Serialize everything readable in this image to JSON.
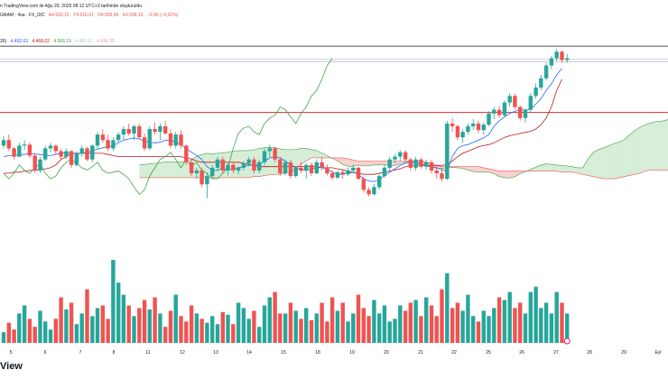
{
  "header": {
    "published": "n TradingView.com ile Ağu 29, 2025 08:12 UTC+3 tarihinde oluşturuldu",
    "symbol": "GRAM · 4sa · FX_IDC",
    "open": "A4.509,15",
    "high": "Y4.516,01",
    "low": "D4.505,99",
    "close": "K4.508,19",
    "change": "−0,96 (−0,02%)"
  },
  "indicator": {
    "label": "26)",
    "values": [
      "4.492,63",
      "4.468,02",
      "4.508,19",
      "4.480,12",
      "4.436,30"
    ]
  },
  "watermark": "View",
  "colors": {
    "up": "#26a69a",
    "down": "#ef5350",
    "conversion": "#2962ff",
    "base": "#b71c1c",
    "lagging": "#43a047",
    "cloud_bull": "#a5d6a7",
    "cloud_bear": "#ef9a9a",
    "hline": "#d32f2f",
    "hline_top": "#131722",
    "gray_line": "#b2b5be"
  },
  "chart_data": {
    "type": "candlestick",
    "x_ticks": [
      "5",
      "6",
      "7",
      "8",
      "11",
      "12",
      "13",
      "14",
      "15",
      "18",
      "19",
      "20",
      "21",
      "22",
      "25",
      "26",
      "27",
      "28",
      "29",
      "Eyl"
    ],
    "price_range": [
      4140,
      4540
    ],
    "horizontal_lines": [
      4530,
      4506,
      4502,
      4410
    ],
    "ohlc": [
      [
        4350,
        4368,
        4345,
        4360
      ],
      [
        4360,
        4370,
        4340,
        4345
      ],
      [
        4345,
        4348,
        4325,
        4330
      ],
      [
        4330,
        4355,
        4330,
        4350
      ],
      [
        4350,
        4360,
        4342,
        4352
      ],
      [
        4352,
        4356,
        4328,
        4332
      ],
      [
        4332,
        4336,
        4300,
        4305
      ],
      [
        4305,
        4330,
        4300,
        4325
      ],
      [
        4325,
        4350,
        4322,
        4345
      ],
      [
        4345,
        4355,
        4338,
        4350
      ],
      [
        4350,
        4352,
        4335,
        4340
      ],
      [
        4340,
        4344,
        4325,
        4330
      ],
      [
        4330,
        4345,
        4326,
        4340
      ],
      [
        4340,
        4342,
        4310,
        4315
      ],
      [
        4315,
        4340,
        4312,
        4335
      ],
      [
        4335,
        4350,
        4330,
        4345
      ],
      [
        4345,
        4348,
        4322,
        4325
      ],
      [
        4325,
        4352,
        4320,
        4350
      ],
      [
        4350,
        4375,
        4345,
        4370
      ],
      [
        4370,
        4380,
        4355,
        4360
      ],
      [
        4360,
        4370,
        4340,
        4345
      ],
      [
        4345,
        4365,
        4340,
        4360
      ],
      [
        4360,
        4375,
        4355,
        4370
      ],
      [
        4370,
        4385,
        4360,
        4380
      ],
      [
        4380,
        4390,
        4368,
        4372
      ],
      [
        4372,
        4388,
        4360,
        4385
      ],
      [
        4385,
        4390,
        4362,
        4365
      ],
      [
        4365,
        4372,
        4340,
        4345
      ],
      [
        4345,
        4385,
        4342,
        4380
      ],
      [
        4380,
        4392,
        4370,
        4375
      ],
      [
        4375,
        4390,
        4360,
        4385
      ],
      [
        4385,
        4395,
        4370,
        4372
      ],
      [
        4372,
        4380,
        4345,
        4350
      ],
      [
        4350,
        4375,
        4345,
        4370
      ],
      [
        4370,
        4378,
        4345,
        4350
      ],
      [
        4350,
        4352,
        4315,
        4320
      ],
      [
        4320,
        4325,
        4295,
        4300
      ],
      [
        4300,
        4310,
        4290,
        4305
      ],
      [
        4305,
        4310,
        4275,
        4280
      ],
      [
        4280,
        4300,
        4255,
        4295
      ],
      [
        4295,
        4315,
        4290,
        4310
      ],
      [
        4310,
        4330,
        4305,
        4325
      ],
      [
        4325,
        4330,
        4300,
        4305
      ],
      [
        4305,
        4318,
        4296,
        4315
      ],
      [
        4315,
        4320,
        4300,
        4305
      ],
      [
        4305,
        4312,
        4298,
        4310
      ],
      [
        4310,
        4322,
        4305,
        4318
      ],
      [
        4318,
        4330,
        4312,
        4325
      ],
      [
        4325,
        4330,
        4300,
        4305
      ],
      [
        4305,
        4325,
        4300,
        4320
      ],
      [
        4320,
        4345,
        4315,
        4340
      ],
      [
        4340,
        4352,
        4330,
        4345
      ],
      [
        4345,
        4348,
        4320,
        4325
      ],
      [
        4325,
        4330,
        4295,
        4300
      ],
      [
        4300,
        4325,
        4296,
        4320
      ],
      [
        4320,
        4324,
        4290,
        4295
      ],
      [
        4295,
        4312,
        4292,
        4310
      ],
      [
        4310,
        4320,
        4300,
        4305
      ],
      [
        4305,
        4318,
        4290,
        4315
      ],
      [
        4315,
        4320,
        4295,
        4300
      ],
      [
        4300,
        4325,
        4298,
        4320
      ],
      [
        4320,
        4330,
        4305,
        4310
      ],
      [
        4310,
        4316,
        4296,
        4300
      ],
      [
        4300,
        4305,
        4288,
        4292
      ],
      [
        4292,
        4304,
        4290,
        4302
      ],
      [
        4302,
        4308,
        4290,
        4298
      ],
      [
        4298,
        4310,
        4295,
        4305
      ],
      [
        4305,
        4316,
        4300,
        4310
      ],
      [
        4310,
        4312,
        4288,
        4290
      ],
      [
        4290,
        4294,
        4265,
        4270
      ],
      [
        4270,
        4275,
        4258,
        4262
      ],
      [
        4262,
        4280,
        4260,
        4275
      ],
      [
        4275,
        4300,
        4270,
        4295
      ],
      [
        4295,
        4315,
        4292,
        4310
      ],
      [
        4310,
        4330,
        4305,
        4325
      ],
      [
        4325,
        4335,
        4318,
        4330
      ],
      [
        4330,
        4342,
        4322,
        4338
      ],
      [
        4338,
        4342,
        4320,
        4325
      ],
      [
        4325,
        4328,
        4305,
        4310
      ],
      [
        4310,
        4330,
        4305,
        4325
      ],
      [
        4325,
        4328,
        4308,
        4312
      ],
      [
        4312,
        4325,
        4306,
        4320
      ],
      [
        4320,
        4324,
        4300,
        4305
      ],
      [
        4305,
        4316,
        4290,
        4300
      ],
      [
        4300,
        4310,
        4285,
        4290
      ],
      [
        4290,
        4395,
        4288,
        4390
      ],
      [
        4390,
        4400,
        4375,
        4385
      ],
      [
        4385,
        4388,
        4360,
        4365
      ],
      [
        4365,
        4380,
        4355,
        4375
      ],
      [
        4375,
        4390,
        4370,
        4385
      ],
      [
        4385,
        4398,
        4378,
        4390
      ],
      [
        4390,
        4395,
        4372,
        4378
      ],
      [
        4378,
        4392,
        4370,
        4388
      ],
      [
        4388,
        4412,
        4385,
        4408
      ],
      [
        4408,
        4420,
        4398,
        4415
      ],
      [
        4415,
        4422,
        4400,
        4405
      ],
      [
        4405,
        4432,
        4402,
        4428
      ],
      [
        4428,
        4445,
        4420,
        4440
      ],
      [
        4440,
        4444,
        4415,
        4420
      ],
      [
        4420,
        4422,
        4395,
        4400
      ],
      [
        4400,
        4418,
        4392,
        4415
      ],
      [
        4415,
        4445,
        4410,
        4440
      ],
      [
        4440,
        4462,
        4435,
        4455
      ],
      [
        4455,
        4478,
        4450,
        4472
      ],
      [
        4472,
        4500,
        4468,
        4495
      ],
      [
        4495,
        4512,
        4488,
        4508
      ],
      [
        4508,
        4525,
        4503,
        4520
      ],
      [
        4520,
        4522,
        4500,
        4505
      ],
      [
        4505,
        4516,
        4500,
        4508
      ]
    ],
    "volume": [
      8,
      15,
      10,
      22,
      28,
      18,
      12,
      24,
      16,
      10,
      18,
      34,
      25,
      30,
      14,
      22,
      40,
      20,
      26,
      28,
      18,
      62,
      45,
      36,
      28,
      20,
      26,
      32,
      25,
      34,
      22,
      12,
      24,
      36,
      20,
      16,
      28,
      22,
      18,
      15,
      20,
      14,
      23,
      21,
      14,
      30,
      26,
      18,
      24,
      12,
      28,
      34,
      38,
      22,
      22,
      30,
      24,
      18,
      26,
      17,
      22,
      30,
      16,
      34,
      24,
      30,
      16,
      22,
      36,
      26,
      20,
      32,
      22,
      28,
      16,
      18,
      28,
      24,
      30,
      32,
      20,
      34,
      28,
      20,
      40,
      52,
      26,
      30,
      24,
      36,
      20,
      16,
      24,
      20,
      26,
      34,
      32,
      38,
      26,
      30,
      22,
      38,
      42,
      26,
      30,
      22,
      38,
      30,
      22,
      26
    ],
    "tenkan": [
      4330,
      4332,
      4332,
      4334,
      4334,
      4336,
      4335,
      4334,
      4333,
      4332,
      4334,
      4336,
      4338,
      4336,
      4335,
      4336,
      4338,
      4340,
      4344,
      4346,
      4348,
      4350,
      4355,
      4360,
      4362,
      4364,
      4362,
      4358,
      4356,
      4355,
      4356,
      4360,
      4360,
      4356,
      4352,
      4345,
      4338,
      4332,
      4325,
      4312,
      4305,
      4305,
      4310,
      4306,
      4308,
      4310,
      4312,
      4315,
      4314,
      4316,
      4322,
      4328,
      4330,
      4328,
      4322,
      4316,
      4310,
      4306,
      4305,
      4308,
      4310,
      4310,
      4308,
      4302,
      4298,
      4298,
      4300,
      4302,
      4298,
      4290,
      4286,
      4285,
      4288,
      4296,
      4302,
      4308,
      4314,
      4318,
      4320,
      4318,
      4316,
      4314,
      4312,
      4310,
      4306,
      4304,
      4330,
      4345,
      4350,
      4352,
      4356,
      4360,
      4364,
      4370,
      4385,
      4395,
      4402,
      4408,
      4412,
      4415,
      4414,
      4416,
      4425,
      4435,
      4450,
      4462,
      4478,
      4490
    ],
    "kijun": [
      4300,
      4300,
      4302,
      4302,
      4304,
      4305,
      4306,
      4306,
      4308,
      4310,
      4315,
      4325,
      4330,
      4336,
      4336,
      4336,
      4336,
      4336,
      4336,
      4336,
      4334,
      4332,
      4330,
      4330,
      4330,
      4330,
      4330,
      4330,
      4330,
      4330,
      4330,
      4330,
      4330,
      4330,
      4330,
      4328,
      4326,
      4322,
      4320,
      4320,
      4320,
      4320,
      4320,
      4320,
      4320,
      4320,
      4318,
      4316,
      4314,
      4312,
      4312,
      4312,
      4312,
      4312,
      4312,
      4312,
      4312,
      4312,
      4312,
      4312,
      4312,
      4310,
      4310,
      4310,
      4308,
      4306,
      4304,
      4302,
      4300,
      4298,
      4298,
      4298,
      4300,
      4302,
      4304,
      4306,
      4308,
      4312,
      4314,
      4314,
      4314,
      4314,
      4314,
      4314,
      4314,
      4316,
      4322,
      4330,
      4336,
      4340,
      4344,
      4348,
      4350,
      4352,
      4355,
      4360,
      4365,
      4368,
      4370,
      4372,
      4374,
      4376,
      4380,
      4388,
      4400,
      4420,
      4450,
      4470
    ],
    "chikou": [
      4300,
      4290,
      4300,
      4315,
      4305,
      4300,
      4310,
      4318,
      4300,
      4290,
      4295,
      4310,
      4320,
      4325,
      4318,
      4310,
      4306,
      4312,
      4320,
      4305,
      4300,
      4302,
      4304,
      4298,
      4290,
      4275,
      4262,
      4270,
      4295,
      4310,
      4325,
      4330,
      4338,
      4325,
      4310,
      4325,
      4312,
      4320,
      4305,
      4300,
      4290,
      4290,
      4300,
      4310,
      4345,
      4372,
      4382,
      4385,
      4375,
      4370,
      4390,
      4400,
      4405,
      4420,
      4415,
      4402,
      4390,
      4408,
      4420,
      4440,
      4450,
      4470,
      4495,
      4508
    ]
  }
}
